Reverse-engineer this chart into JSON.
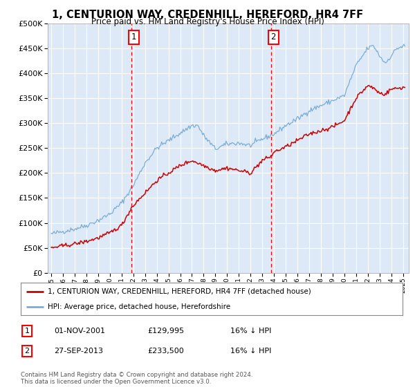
{
  "title": "1, CENTURION WAY, CREDENHILL, HEREFORD, HR4 7FF",
  "subtitle": "Price paid vs. HM Land Registry's House Price Index (HPI)",
  "background_color": "#dde9f7",
  "plot_bg_color": "#dde9f7",
  "sale1_x": 2001.833,
  "sale2_x": 2013.75,
  "legend_line1": "1, CENTURION WAY, CREDENHILL, HEREFORD, HR4 7FF (detached house)",
  "legend_line2": "HPI: Average price, detached house, Herefordshire",
  "table_row1": [
    "1",
    "01-NOV-2001",
    "£129,995",
    "16% ↓ HPI"
  ],
  "table_row2": [
    "2",
    "27-SEP-2013",
    "£233,500",
    "16% ↓ HPI"
  ],
  "footer": "Contains HM Land Registry data © Crown copyright and database right 2024.\nThis data is licensed under the Open Government Licence v3.0.",
  "red_color": "#cc0000",
  "blue_color": "#7aadd4",
  "ylim": [
    0,
    500000
  ],
  "yticks": [
    0,
    50000,
    100000,
    150000,
    200000,
    250000,
    300000,
    350000,
    400000,
    450000,
    500000
  ],
  "hpi_knots_x": [
    1995.0,
    1996.0,
    1997.0,
    1998.0,
    1999.0,
    2000.0,
    2001.0,
    2002.0,
    2003.0,
    2004.0,
    2005.0,
    2006.0,
    2007.0,
    2007.5,
    2008.0,
    2009.0,
    2010.0,
    2011.0,
    2012.0,
    2013.0,
    2014.0,
    2015.0,
    2016.0,
    2017.0,
    2018.0,
    2019.0,
    2020.0,
    2021.0,
    2022.0,
    2022.5,
    2023.0,
    2023.5,
    2024.0,
    2024.5,
    2025.25
  ],
  "hpi_knots_y": [
    78000,
    83000,
    88000,
    95000,
    105000,
    118000,
    140000,
    175000,
    220000,
    250000,
    265000,
    280000,
    295000,
    295000,
    275000,
    248000,
    258000,
    260000,
    255000,
    268000,
    278000,
    295000,
    308000,
    325000,
    335000,
    345000,
    355000,
    415000,
    450000,
    455000,
    435000,
    420000,
    435000,
    450000,
    455000
  ],
  "red_knots_x": [
    1995.0,
    1996.0,
    1997.0,
    1998.0,
    1999.0,
    2000.0,
    2001.0,
    2001.833,
    2002.5,
    2003.0,
    2004.0,
    2005.0,
    2006.0,
    2007.0,
    2008.0,
    2009.0,
    2010.0,
    2011.0,
    2012.0,
    2013.0,
    2013.75,
    2014.0,
    2015.0,
    2016.0,
    2017.0,
    2018.0,
    2019.0,
    2020.0,
    2021.0,
    2022.0,
    2022.5,
    2023.0,
    2023.5,
    2024.0,
    2025.25
  ],
  "red_knots_y": [
    50000,
    54000,
    58000,
    63000,
    70000,
    80000,
    95000,
    129995,
    148000,
    160000,
    185000,
    200000,
    215000,
    225000,
    215000,
    205000,
    210000,
    205000,
    200000,
    225000,
    233500,
    242000,
    252000,
    265000,
    278000,
    285000,
    292000,
    305000,
    350000,
    375000,
    370000,
    360000,
    358000,
    368000,
    372000
  ]
}
